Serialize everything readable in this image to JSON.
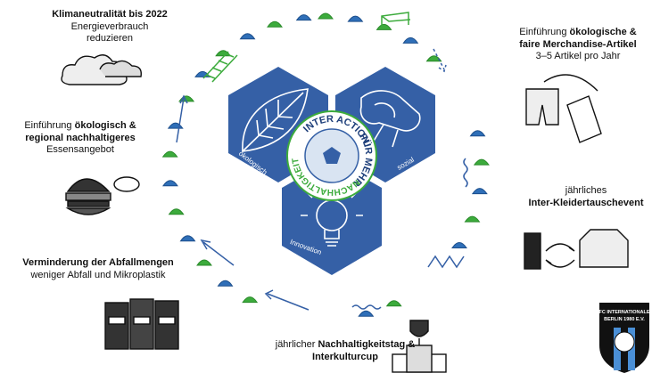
{
  "items": [
    {
      "lines": [
        [
          {
            "text": "Klimaneutralität bis 2022",
            "bold": true
          }
        ],
        [
          {
            "text": "Energieverbrauch"
          }
        ],
        [
          {
            "text": "reduzieren"
          }
        ]
      ]
    },
    {
      "lines": [
        [
          {
            "text": "Einführung "
          },
          {
            "text": "ökologisch &",
            "bold": true
          }
        ],
        [
          {
            "text": "regional nachhaltigeres",
            "bold": true
          }
        ],
        [
          {
            "text": "Essensangebot"
          }
        ]
      ]
    },
    {
      "lines": [
        [
          {
            "text": "Verminderung der Abfallmengen",
            "bold": true
          }
        ],
        [
          {
            "text": "weniger Abfall und Mikroplastik"
          }
        ]
      ]
    },
    {
      "lines": [
        [
          {
            "text": "jährlicher "
          },
          {
            "text": "Nachhaltigkeitstag &",
            "bold": true
          }
        ],
        [
          {
            "text": "Interkulturcup",
            "bold": true
          }
        ]
      ]
    },
    {
      "lines": [
        [
          {
            "text": "jährliches"
          }
        ],
        [
          {
            "text": "Inter-Kleidertauschevent",
            "bold": true
          }
        ]
      ]
    },
    {
      "lines": [
        [
          {
            "text": "Einführung "
          },
          {
            "text": "ökologische &",
            "bold": true
          }
        ],
        [
          {
            "text": "faire Merchandise-Artikel",
            "bold": true
          }
        ],
        [
          {
            "text": "3–5 Artikel pro Jahr"
          }
        ]
      ]
    }
  ],
  "pillars": [
    "ökologisch",
    "sozial",
    "Innovation"
  ],
  "center": {
    "top": "INTER ACTION!",
    "right": "FÜR MEHR",
    "left": "NACHHALTIGKEIT"
  },
  "badge": {
    "lines": [
      "FC INTERNATIONALE",
      "BERLIN 1980 E.V."
    ]
  }
}
